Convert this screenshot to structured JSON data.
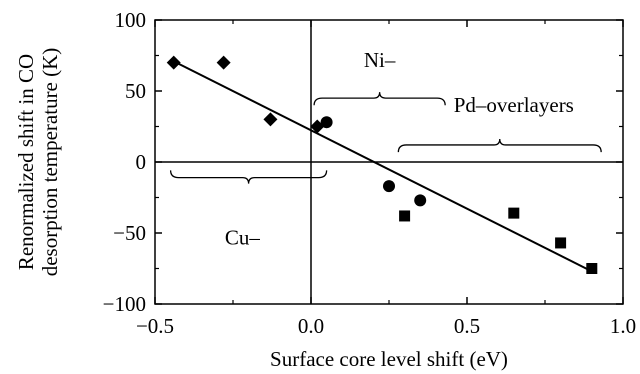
{
  "chart_data": {
    "type": "scatter",
    "xlabel": "Surface core level shift (eV)",
    "ylabel": [
      "Renormalized shift in CO",
      "desorption temperature (K)"
    ],
    "xlim": [
      -0.5,
      1.0
    ],
    "ylim": [
      -100,
      100
    ],
    "xticks": [
      -0.5,
      0.0,
      0.5,
      1.0
    ],
    "xtick_labels": [
      "−0.5",
      "0.0",
      "0.5",
      "1.0"
    ],
    "yticks": [
      -100,
      -50,
      0,
      50,
      100
    ],
    "ytick_labels": [
      "−100",
      "−50",
      "0",
      "50",
      "100"
    ],
    "grid": false,
    "legend": "none",
    "reference_lines": {
      "x": 0,
      "y": 0
    },
    "series": [
      {
        "marker": "diamond",
        "x": [
          -0.44,
          -0.28,
          -0.13,
          0.02
        ],
        "y": [
          70,
          70,
          30,
          25
        ]
      },
      {
        "marker": "circle",
        "x": [
          0.05,
          0.25,
          0.35
        ],
        "y": [
          28,
          -17,
          -27
        ]
      },
      {
        "marker": "square",
        "x": [
          0.3,
          0.65,
          0.8,
          0.9
        ],
        "y": [
          -38,
          -36,
          -57,
          -75
        ]
      }
    ],
    "fit_line": {
      "x": [
        -0.45,
        0.9
      ],
      "y": [
        72,
        -77
      ]
    },
    "annotations": [
      {
        "text": "Ni–",
        "x": 0.22,
        "y": 72
      },
      {
        "text": "Pd–overlayers",
        "x": 0.65,
        "y": 40
      },
      {
        "text": "Cu–",
        "x": -0.22,
        "y": -53
      }
    ],
    "braces": [
      {
        "x_start": 0.01,
        "x_end": 0.43,
        "y": 45,
        "direction": "up"
      },
      {
        "x_start": 0.28,
        "x_end": 0.93,
        "y": 12,
        "direction": "up"
      },
      {
        "x_start": -0.45,
        "x_end": 0.05,
        "y": -11,
        "direction": "down"
      }
    ]
  }
}
